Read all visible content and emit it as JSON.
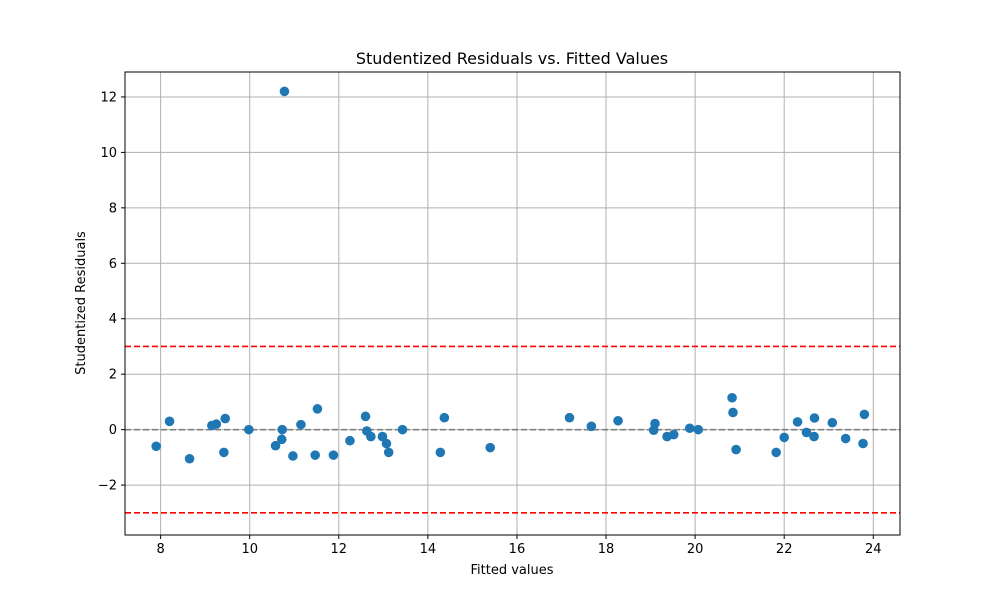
{
  "chart_data": {
    "type": "scatter",
    "title": "Studentized Residuals vs. Fitted Values",
    "xlabel": "Fitted values",
    "ylabel": "Studentized Residuals",
    "xlim": [
      7.2,
      24.6
    ],
    "ylim": [
      -3.8,
      12.9
    ],
    "xticks": [
      8,
      10,
      12,
      14,
      16,
      18,
      20,
      22,
      24
    ],
    "yticks": [
      -2,
      0,
      2,
      4,
      6,
      8,
      10,
      12
    ],
    "grid": true,
    "legend": "none",
    "colors": {
      "points": "#1f77b4",
      "threshold": "#ff0000",
      "zero_line": "#808080",
      "grid": "#b0b0b0"
    },
    "reference_lines": [
      {
        "id": "upper-threshold",
        "y": 3,
        "style": "dashed",
        "color": "#ff0000"
      },
      {
        "id": "lower-threshold",
        "y": -3,
        "style": "dashed",
        "color": "#ff0000"
      },
      {
        "id": "zero",
        "y": 0,
        "style": "dashed",
        "color": "#808080"
      }
    ],
    "points": [
      {
        "x": 7.9,
        "y": -0.6
      },
      {
        "x": 8.2,
        "y": 0.3
      },
      {
        "x": 8.65,
        "y": -1.05
      },
      {
        "x": 9.15,
        "y": 0.15
      },
      {
        "x": 9.25,
        "y": 0.2
      },
      {
        "x": 9.42,
        "y": -0.82
      },
      {
        "x": 9.45,
        "y": 0.4
      },
      {
        "x": 9.98,
        "y": 0.0
      },
      {
        "x": 10.58,
        "y": -0.58
      },
      {
        "x": 10.72,
        "y": -0.35
      },
      {
        "x": 10.73,
        "y": 0.0
      },
      {
        "x": 10.78,
        "y": 12.2
      },
      {
        "x": 10.97,
        "y": -0.95
      },
      {
        "x": 11.15,
        "y": 0.18
      },
      {
        "x": 11.47,
        "y": -0.92
      },
      {
        "x": 11.52,
        "y": 0.75
      },
      {
        "x": 11.88,
        "y": -0.92
      },
      {
        "x": 12.25,
        "y": -0.4
      },
      {
        "x": 12.6,
        "y": 0.48
      },
      {
        "x": 12.63,
        "y": -0.05
      },
      {
        "x": 12.72,
        "y": -0.25
      },
      {
        "x": 12.98,
        "y": -0.25
      },
      {
        "x": 13.07,
        "y": -0.5
      },
      {
        "x": 13.12,
        "y": -0.82
      },
      {
        "x": 13.43,
        "y": 0.0
      },
      {
        "x": 14.28,
        "y": -0.82
      },
      {
        "x": 14.37,
        "y": 0.43
      },
      {
        "x": 15.4,
        "y": -0.65
      },
      {
        "x": 17.18,
        "y": 0.43
      },
      {
        "x": 17.67,
        "y": 0.12
      },
      {
        "x": 18.27,
        "y": 0.32
      },
      {
        "x": 19.07,
        "y": -0.02
      },
      {
        "x": 19.1,
        "y": 0.22
      },
      {
        "x": 19.37,
        "y": -0.25
      },
      {
        "x": 19.52,
        "y": -0.18
      },
      {
        "x": 19.88,
        "y": 0.05
      },
      {
        "x": 20.07,
        "y": 0.0
      },
      {
        "x": 20.83,
        "y": 1.15
      },
      {
        "x": 20.85,
        "y": 0.62
      },
      {
        "x": 20.92,
        "y": -0.72
      },
      {
        "x": 21.82,
        "y": -0.82
      },
      {
        "x": 22.0,
        "y": -0.28
      },
      {
        "x": 22.3,
        "y": 0.28
      },
      {
        "x": 22.5,
        "y": -0.1
      },
      {
        "x": 22.67,
        "y": -0.25
      },
      {
        "x": 22.68,
        "y": 0.42
      },
      {
        "x": 23.08,
        "y": 0.25
      },
      {
        "x": 23.38,
        "y": -0.32
      },
      {
        "x": 23.77,
        "y": -0.5
      },
      {
        "x": 23.8,
        "y": 0.55
      }
    ]
  }
}
